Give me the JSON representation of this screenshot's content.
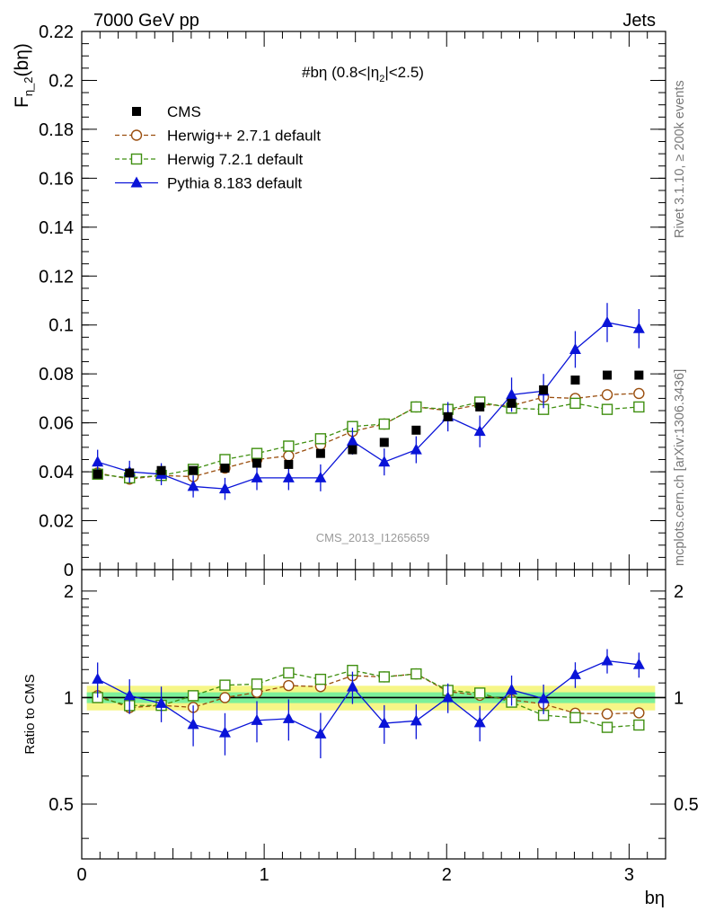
{
  "header": {
    "left": "7000 GeV pp",
    "right": "Jets"
  },
  "side_labels": {
    "rivet": "Rivet 3.1.10, ≥ 200k events",
    "mcplots": "mcplots.cern.ch [arXiv:1306.3436]"
  },
  "watermark": "CMS_2013_I1265659",
  "chart_data": {
    "type": "line",
    "title": "#bη (0.8<|η",
    "title_sub": "2",
    "title_tail": "|<2.5)",
    "xlabel": "bη",
    "ylabel": "F",
    "ylabel_sub": "η_2",
    "ylabel_tail": "(bη)",
    "ratio_ylabel": "Ratio to CMS",
    "xlim": [
      0,
      3.2
    ],
    "ylim": [
      0,
      0.22
    ],
    "ratio_ylim": [
      0.35,
      2.3
    ],
    "x_ticks": [
      "0",
      "1",
      "2",
      "3"
    ],
    "y_ticks": [
      "0",
      "0.02",
      "0.04",
      "0.06",
      "0.08",
      "0.1",
      "0.12",
      "0.14",
      "0.16",
      "0.18",
      "0.2",
      "0.22"
    ],
    "ratio_ticks": [
      "0.5",
      "1",
      "2"
    ],
    "x": [
      0.087,
      0.262,
      0.436,
      0.611,
      0.785,
      0.96,
      1.134,
      1.309,
      1.484,
      1.658,
      1.833,
      2.007,
      2.182,
      2.356,
      2.531,
      2.705,
      2.88,
      3.054
    ],
    "band": {
      "inner": 0.035,
      "outer": 0.08
    },
    "legend": [
      "CMS",
      "Herwig++ 2.7.1 default",
      "Herwig 7.2.1 default",
      "Pythia 8.183 default"
    ],
    "series": [
      {
        "name": "CMS",
        "color": "#000000",
        "marker": "square-filled",
        "values": [
          0.039,
          0.0395,
          0.0405,
          0.0405,
          0.0415,
          0.0435,
          0.043,
          0.0475,
          0.049,
          0.052,
          0.057,
          0.0625,
          0.0665,
          0.068,
          0.0735,
          0.0775,
          0.0795,
          0.0795
        ]
      },
      {
        "name": "Herwig++ 2.7.1 default",
        "color": "#9a4e0e",
        "marker": "circle-open",
        "dashed": true,
        "values": [
          0.0395,
          0.037,
          0.0385,
          0.038,
          0.0415,
          0.045,
          0.0465,
          0.051,
          0.0565,
          0.0595,
          0.0665,
          0.065,
          0.0675,
          0.067,
          0.0705,
          0.07,
          0.0715,
          0.072
        ]
      },
      {
        "name": "Herwig 7.2.1 default",
        "color": "#3f8f10",
        "marker": "square-open",
        "dashed": true,
        "values": [
          0.039,
          0.0375,
          0.0385,
          0.041,
          0.045,
          0.0475,
          0.0505,
          0.0535,
          0.0585,
          0.0595,
          0.0665,
          0.0655,
          0.0685,
          0.066,
          0.0655,
          0.068,
          0.0655,
          0.0665
        ]
      },
      {
        "name": "Pythia 8.183 default",
        "color": "#0a14d8",
        "marker": "triangle-filled",
        "values": [
          0.044,
          0.04,
          0.039,
          0.034,
          0.033,
          0.0375,
          0.0375,
          0.0375,
          0.0525,
          0.044,
          0.049,
          0.0625,
          0.0565,
          0.0715,
          0.073,
          0.09,
          0.101,
          0.0985
        ],
        "errors": [
          0.005,
          0.0045,
          0.0045,
          0.0045,
          0.0045,
          0.005,
          0.005,
          0.0055,
          0.0055,
          0.0055,
          0.0055,
          0.006,
          0.0065,
          0.007,
          0.007,
          0.0075,
          0.008,
          0.008
        ]
      }
    ]
  }
}
